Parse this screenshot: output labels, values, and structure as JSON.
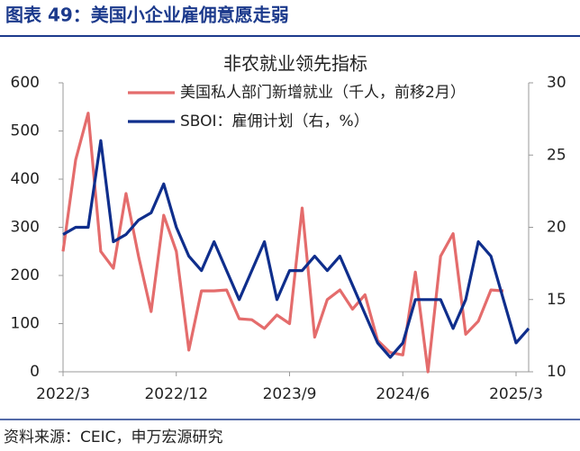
{
  "header": {
    "title": "图表 49：美国小企业雇佣意愿走弱"
  },
  "chart_data": {
    "type": "line",
    "title": "非农就业领先指标",
    "categories": [
      "2022/3",
      null,
      null,
      null,
      null,
      null,
      null,
      null,
      null,
      "2022/12",
      null,
      null,
      null,
      null,
      null,
      null,
      null,
      null,
      "2023/9",
      null,
      null,
      null,
      null,
      null,
      null,
      null,
      null,
      "2024/6",
      null,
      null,
      null,
      null,
      null,
      null,
      null,
      null,
      "2025/3",
      null
    ],
    "series": [
      {
        "name": "美国私人部门新增就业（千人，前移2月）",
        "color": "#e46c6c",
        "axis": "y",
        "values": [
          250,
          440,
          537,
          250,
          215,
          370,
          240,
          125,
          325,
          250,
          45,
          168,
          168,
          170,
          110,
          108,
          90,
          118,
          100,
          340,
          72,
          150,
          170,
          130,
          160,
          65,
          40,
          35,
          207,
          0,
          240,
          287,
          78,
          105,
          170,
          168,
          null,
          null
        ]
      },
      {
        "name": "SBOI：雇佣计划（右，%）",
        "color": "#0f2e8c",
        "axis": "y2",
        "values": [
          19.5,
          20,
          20,
          26,
          19,
          19.5,
          20.5,
          21,
          23,
          20,
          18,
          17,
          19,
          17,
          15,
          17,
          19,
          15,
          17,
          17,
          18,
          17,
          18,
          16,
          14,
          12,
          11,
          12,
          15,
          15,
          15,
          13,
          15,
          19,
          18,
          15,
          12,
          13
        ]
      }
    ],
    "ylim": [
      0,
      600
    ],
    "yticks": [
      0,
      100,
      200,
      300,
      400,
      500,
      600
    ],
    "y2lim": [
      10,
      30
    ],
    "y2ticks": [
      10,
      15,
      20,
      25,
      30
    ],
    "legend": "upper right",
    "grid": false
  },
  "footer": {
    "source": "资料来源：CEIC，申万宏源研究"
  }
}
